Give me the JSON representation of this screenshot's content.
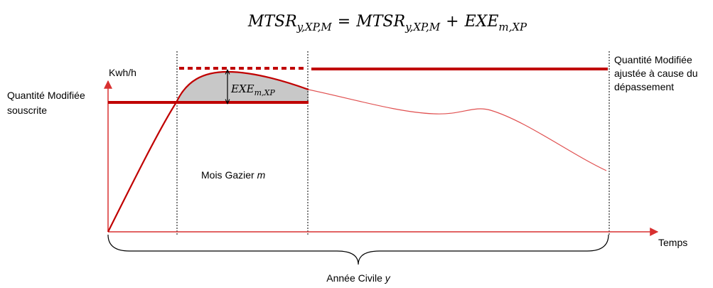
{
  "formula": {
    "lhs_base": "MTSR",
    "lhs_sub": "y,XP,M",
    "equals": "=",
    "rhs_base": "MTSR",
    "rhs_sub": "y,XP,M",
    "plus": "+",
    "exe_base": "EXE",
    "exe_sub": "m,XP"
  },
  "axes": {
    "y_label": "Kwh/h",
    "x_label": "Temps"
  },
  "labels": {
    "subscribed_line1": "Quantité Modifiée",
    "subscribed_line2": "souscrite",
    "adjusted_line1": "Quantité Modifiée",
    "adjusted_line2": "ajustée à cause du",
    "adjusted_line3": "dépassement",
    "month_prefix": "Mois Gazier ",
    "month_var": "m",
    "year_prefix": "Année Civile ",
    "year_var": "y",
    "exe_base": "EXE",
    "exe_sub": "m,XP"
  },
  "colors": {
    "red": "#c00000",
    "light_red": "#e05050",
    "shade": "#c8c8c8",
    "axis": "#d83030"
  }
}
